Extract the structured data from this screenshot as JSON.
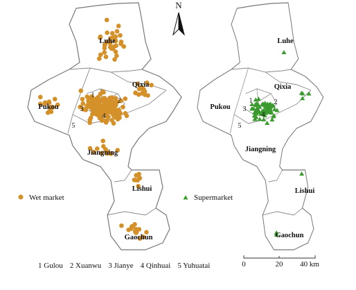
{
  "north": "N",
  "maps": [
    {
      "legend": "Wet market",
      "districts": [
        "Luhe",
        "Qixia",
        "Pukou",
        "Jiangning",
        "Lishui",
        "Gaochun"
      ],
      "district_numbers": [
        "1",
        "2",
        "3",
        "4",
        "5"
      ]
    },
    {
      "legend": "Supermarket",
      "districts": [
        "Luhe",
        "Qixia",
        "Pukou",
        "Jiangning",
        "Lishui",
        "Gaochun"
      ],
      "district_numbers": [
        "1",
        "2",
        "3",
        "4",
        "5"
      ]
    }
  ],
  "key": [
    "1 Gulou",
    "2 Xuanwu",
    "3 Jianye",
    "4 Qinhuai",
    "5 Yuhuatai"
  ],
  "scale": [
    "0",
    "20",
    "40 km"
  ]
}
